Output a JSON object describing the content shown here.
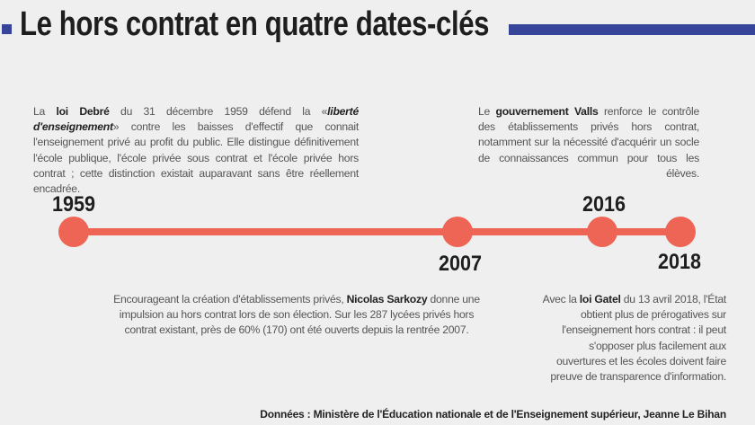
{
  "title": "Le hors contrat en quatre dates-clés",
  "colors": {
    "accent_blue": "#36459a",
    "timeline": "#ee6556"
  },
  "timeline": [
    {
      "year": "1959",
      "text_before": "La ",
      "bold": "loi Debré",
      "text_mid": " du 31 décembre 1959 défend la «",
      "italic": "liberté d'enseignement",
      "text_after": "» contre les baisses d'effectif que connait l'enseignement privé au profit du public. Elle distingue définitivement l'école publique, l'école privée sous contrat et l'école privée hors contrat ; cette distinction existait auparavant sans être réellement encadrée."
    },
    {
      "year": "2007",
      "text_before": "Encourageant la création d'établissements privés, ",
      "bold": "Nicolas Sarkozy",
      "text_after": " donne une impulsion au hors contrat lors de son élection. Sur les 287 lycées privés hors contrat existant, près de 60% (170) ont été ouverts depuis la rentrée 2007."
    },
    {
      "year": "2016",
      "text_before": "Le ",
      "bold": "gouvernement Valls",
      "text_after": " renforce le contrôle des établissements privés hors contrat, notamment sur la nécessité d'acquérir un socle de connaissances commun pour tous les élèves."
    },
    {
      "year": "2018",
      "text_before": "Avec la ",
      "bold": "loi Gatel",
      "text_after": " du 13 avril 2018, l'État obtient plus de prérogatives sur l'enseignement hors contrat : il peut s'opposer plus facilement aux ouvertures et les écoles doivent faire preuve de transparence d'information."
    }
  ],
  "source": "Données : Ministère de l'Éducation nationale et de l'Enseignement supérieur, Jeanne Le Bihan"
}
